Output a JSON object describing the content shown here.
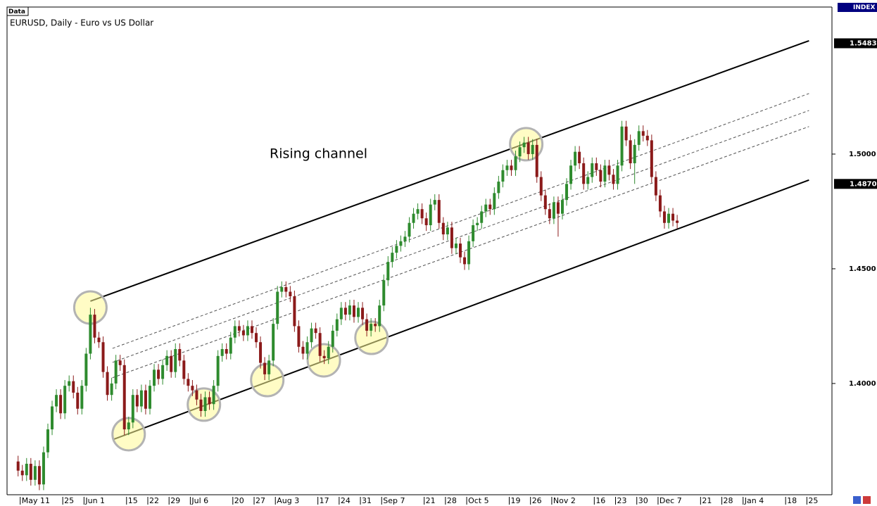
{
  "chart_data": {
    "type": "candlestick",
    "corner_label": "Data",
    "title": "EURUSD, Daily - Euro vs US Dollar",
    "index_tab": "INDEX",
    "annotation": "Rising channel",
    "up_color": "#2e8b2e",
    "down_color": "#8b1a1a",
    "xlim": [
      -3.6,
      190.4
    ],
    "ylim": [
      1.3515,
      1.5641
    ],
    "yticks": [
      {
        "value": 1.4,
        "label": "1.4000"
      },
      {
        "value": 1.45,
        "label": "1.4500"
      },
      {
        "value": 1.5,
        "label": "1.5000"
      }
    ],
    "price_labels": [
      {
        "value": 1.5483,
        "label": "1.5483"
      },
      {
        "value": 1.487,
        "label": "1.4870"
      }
    ],
    "xticks": [
      {
        "value": 0,
        "label": "May 11"
      },
      {
        "value": 10,
        "label": "25"
      },
      {
        "value": 15,
        "label": "Jun 1"
      },
      {
        "value": 25,
        "label": "15"
      },
      {
        "value": 30,
        "label": "22"
      },
      {
        "value": 35,
        "label": "29"
      },
      {
        "value": 40,
        "label": "Jul 6"
      },
      {
        "value": 50,
        "label": "20"
      },
      {
        "value": 55,
        "label": "27"
      },
      {
        "value": 60,
        "label": "Aug 3"
      },
      {
        "value": 70,
        "label": "17"
      },
      {
        "value": 75,
        "label": "24"
      },
      {
        "value": 80,
        "label": "31"
      },
      {
        "value": 85,
        "label": "Sep 7"
      },
      {
        "value": 95,
        "label": "21"
      },
      {
        "value": 100,
        "label": "28"
      },
      {
        "value": 105,
        "label": "Oct 5"
      },
      {
        "value": 115,
        "label": "19"
      },
      {
        "value": 120,
        "label": "26"
      },
      {
        "value": 125,
        "label": "Nov 2"
      },
      {
        "value": 135,
        "label": "16"
      },
      {
        "value": 140,
        "label": "23"
      },
      {
        "value": 145,
        "label": "30"
      },
      {
        "value": 150,
        "label": "Dec 7"
      },
      {
        "value": 160,
        "label": "21"
      },
      {
        "value": 165,
        "label": "28"
      },
      {
        "value": 170,
        "label": "Jan 4"
      },
      {
        "value": 180,
        "label": "18"
      },
      {
        "value": 185,
        "label": "25"
      }
    ],
    "trendlines": [
      {
        "x": [
          16,
          185
        ],
        "y": [
          1.4359,
          1.5494
        ],
        "dashed": false
      },
      {
        "x": [
          21.2,
          185
        ],
        "y": [
          1.3755,
          1.4887
        ],
        "dashed": false
      },
      {
        "x": [
          21.2,
          185
        ],
        "y": [
          1.4153,
          1.5264
        ],
        "dashed": true
      },
      {
        "x": [
          21.2,
          185
        ],
        "y": [
          1.4092,
          1.519
        ],
        "dashed": true
      },
      {
        "x": [
          21.2,
          185
        ],
        "y": [
          1.4025,
          1.512
        ],
        "dashed": true
      }
    ],
    "highlights": [
      {
        "x": 16,
        "y": 1.4331
      },
      {
        "x": 25,
        "y": 1.3779
      },
      {
        "x": 42.7,
        "y": 1.3908
      },
      {
        "x": 57.6,
        "y": 1.4015
      },
      {
        "x": 70.9,
        "y": 1.4101
      },
      {
        "x": 82.1,
        "y": 1.4199
      },
      {
        "x": 118.5,
        "y": 1.5043
      }
    ],
    "x": [
      -1,
      0,
      1,
      2,
      3,
      4,
      5,
      6,
      7,
      8,
      9,
      10,
      11,
      12,
      13,
      14,
      15,
      16,
      17,
      18,
      19,
      20,
      21,
      22,
      23,
      24,
      25,
      26,
      27,
      28,
      29,
      30,
      31,
      32,
      33,
      34,
      35,
      36,
      37,
      38,
      39,
      40,
      41,
      42,
      43,
      44,
      45,
      46,
      47,
      48,
      49,
      50,
      51,
      52,
      53,
      54,
      55,
      56,
      57,
      58,
      59,
      60,
      61,
      62,
      63,
      64,
      65,
      66,
      67,
      68,
      69,
      70,
      71,
      72,
      73,
      74,
      75,
      76,
      77,
      78,
      79,
      80,
      81,
      82,
      83,
      84,
      85,
      86,
      87,
      88,
      89,
      90,
      91,
      92,
      93,
      94,
      95,
      96,
      97,
      98,
      99,
      100,
      101,
      102,
      103,
      104,
      105,
      106,
      107,
      108,
      109,
      110,
      111,
      112,
      113,
      114,
      115,
      116,
      117,
      118,
      119,
      120,
      121,
      122,
      123,
      124,
      125,
      126,
      127,
      128,
      129,
      130,
      131,
      132,
      133,
      134,
      135,
      136,
      137,
      138,
      139,
      140,
      141,
      142,
      143,
      144,
      145,
      146,
      147,
      148,
      149,
      150,
      151,
      152,
      153,
      154
    ],
    "candles": [
      [
        1.366,
        1.3685,
        1.3595,
        1.362
      ],
      [
        1.362,
        1.3645,
        1.3575,
        1.36
      ],
      [
        1.36,
        1.3675,
        1.3575,
        1.365
      ],
      [
        1.365,
        1.3675,
        1.3555,
        1.358
      ],
      [
        1.358,
        1.3665,
        1.3555,
        1.364
      ],
      [
        1.364,
        1.3665,
        1.3535,
        1.356
      ],
      [
        1.356,
        1.3725,
        1.3535,
        1.37
      ],
      [
        1.37,
        1.3825,
        1.3675,
        1.38
      ],
      [
        1.38,
        1.3925,
        1.3775,
        1.39
      ],
      [
        1.39,
        1.3975,
        1.3875,
        1.395
      ],
      [
        1.395,
        1.3975,
        1.3845,
        1.387
      ],
      [
        1.387,
        1.4015,
        1.3845,
        1.399
      ],
      [
        1.399,
        1.4035,
        1.3965,
        1.401
      ],
      [
        1.401,
        1.4035,
        1.3935,
        1.396
      ],
      [
        1.396,
        1.3985,
        1.3865,
        1.389
      ],
      [
        1.389,
        1.4015,
        1.3865,
        1.399
      ],
      [
        1.399,
        1.4155,
        1.3965,
        1.413
      ],
      [
        1.413,
        1.433,
        1.4105,
        1.43
      ],
      [
        1.43,
        1.4325,
        1.4175,
        1.42
      ],
      [
        1.42,
        1.4225,
        1.4155,
        1.418
      ],
      [
        1.418,
        1.4205,
        1.4025,
        1.405
      ],
      [
        1.405,
        1.4075,
        1.3925,
        1.395
      ],
      [
        1.395,
        1.4025,
        1.3925,
        1.4
      ],
      [
        1.4,
        1.4125,
        1.3975,
        1.41
      ],
      [
        1.41,
        1.4125,
        1.4055,
        1.408
      ],
      [
        1.408,
        1.4105,
        1.3775,
        1.38
      ],
      [
        1.38,
        1.3855,
        1.3775,
        1.383
      ],
      [
        1.383,
        1.3975,
        1.3805,
        1.395
      ],
      [
        1.395,
        1.3975,
        1.3875,
        1.39
      ],
      [
        1.39,
        1.3995,
        1.3875,
        1.397
      ],
      [
        1.397,
        1.3995,
        1.3865,
        1.389
      ],
      [
        1.389,
        1.4015,
        1.3865,
        1.399
      ],
      [
        1.399,
        1.4085,
        1.3965,
        1.406
      ],
      [
        1.406,
        1.4085,
        1.3995,
        1.402
      ],
      [
        1.402,
        1.4105,
        1.3995,
        1.408
      ],
      [
        1.408,
        1.4145,
        1.4055,
        1.412
      ],
      [
        1.412,
        1.4145,
        1.4025,
        1.405
      ],
      [
        1.405,
        1.4175,
        1.4025,
        1.415
      ],
      [
        1.415,
        1.4175,
        1.4075,
        1.41
      ],
      [
        1.41,
        1.4125,
        1.3995,
        1.402
      ],
      [
        1.402,
        1.4045,
        1.3965,
        1.399
      ],
      [
        1.399,
        1.4015,
        1.3945,
        1.397
      ],
      [
        1.397,
        1.3995,
        1.3905,
        1.393
      ],
      [
        1.393,
        1.3955,
        1.3855,
        1.388
      ],
      [
        1.388,
        1.3965,
        1.3855,
        1.394
      ],
      [
        1.394,
        1.3965,
        1.3885,
        1.391
      ],
      [
        1.391,
        1.4015,
        1.3885,
        1.399
      ],
      [
        1.399,
        1.4145,
        1.3965,
        1.412
      ],
      [
        1.412,
        1.4175,
        1.4095,
        1.415
      ],
      [
        1.415,
        1.4175,
        1.4105,
        1.413
      ],
      [
        1.413,
        1.4225,
        1.4105,
        1.42
      ],
      [
        1.42,
        1.4275,
        1.4175,
        1.425
      ],
      [
        1.425,
        1.4275,
        1.4205,
        1.423
      ],
      [
        1.423,
        1.4255,
        1.4185,
        1.421
      ],
      [
        1.421,
        1.4275,
        1.4185,
        1.425
      ],
      [
        1.425,
        1.4275,
        1.4195,
        1.422
      ],
      [
        1.422,
        1.4245,
        1.4155,
        1.418
      ],
      [
        1.418,
        1.4205,
        1.4065,
        1.409
      ],
      [
        1.409,
        1.4115,
        1.4015,
        1.404
      ],
      [
        1.404,
        1.4125,
        1.4015,
        1.41
      ],
      [
        1.41,
        1.4285,
        1.4075,
        1.426
      ],
      [
        1.426,
        1.4425,
        1.4235,
        1.44
      ],
      [
        1.44,
        1.4445,
        1.4375,
        1.442
      ],
      [
        1.442,
        1.4445,
        1.4375,
        1.44
      ],
      [
        1.44,
        1.4425,
        1.4355,
        1.438
      ],
      [
        1.438,
        1.4405,
        1.4225,
        1.425
      ],
      [
        1.425,
        1.4275,
        1.4135,
        1.416
      ],
      [
        1.416,
        1.4185,
        1.4105,
        1.413
      ],
      [
        1.413,
        1.4205,
        1.4105,
        1.418
      ],
      [
        1.418,
        1.4265,
        1.4155,
        1.424
      ],
      [
        1.424,
        1.4265,
        1.4195,
        1.422
      ],
      [
        1.422,
        1.4245,
        1.4095,
        1.412
      ],
      [
        1.412,
        1.4145,
        1.4085,
        1.411
      ],
      [
        1.411,
        1.4185,
        1.4085,
        1.416
      ],
      [
        1.416,
        1.4255,
        1.4135,
        1.423
      ],
      [
        1.423,
        1.4305,
        1.4205,
        1.428
      ],
      [
        1.428,
        1.4355,
        1.4255,
        1.433
      ],
      [
        1.433,
        1.4355,
        1.4275,
        1.43
      ],
      [
        1.43,
        1.4365,
        1.4275,
        1.434
      ],
      [
        1.434,
        1.4365,
        1.4265,
        1.429
      ],
      [
        1.429,
        1.4355,
        1.4265,
        1.433
      ],
      [
        1.433,
        1.4355,
        1.4255,
        1.428
      ],
      [
        1.428,
        1.4305,
        1.4205,
        1.423
      ],
      [
        1.423,
        1.4285,
        1.4205,
        1.426
      ],
      [
        1.426,
        1.4285,
        1.4225,
        1.425
      ],
      [
        1.425,
        1.4365,
        1.4225,
        1.434
      ],
      [
        1.434,
        1.4475,
        1.4315,
        1.445
      ],
      [
        1.445,
        1.4555,
        1.4425,
        1.453
      ],
      [
        1.453,
        1.4595,
        1.4505,
        1.457
      ],
      [
        1.457,
        1.4625,
        1.4545,
        1.46
      ],
      [
        1.46,
        1.4645,
        1.4575,
        1.462
      ],
      [
        1.462,
        1.4665,
        1.4595,
        1.464
      ],
      [
        1.464,
        1.4725,
        1.4615,
        1.47
      ],
      [
        1.47,
        1.4765,
        1.4675,
        1.474
      ],
      [
        1.474,
        1.4785,
        1.4715,
        1.476
      ],
      [
        1.476,
        1.4785,
        1.4695,
        1.472
      ],
      [
        1.472,
        1.4745,
        1.4665,
        1.469
      ],
      [
        1.469,
        1.4805,
        1.4665,
        1.478
      ],
      [
        1.478,
        1.4825,
        1.4755,
        1.48
      ],
      [
        1.48,
        1.4825,
        1.4675,
        1.47
      ],
      [
        1.47,
        1.4725,
        1.4625,
        1.465
      ],
      [
        1.465,
        1.4705,
        1.4625,
        1.468
      ],
      [
        1.468,
        1.4705,
        1.4565,
        1.459
      ],
      [
        1.459,
        1.4635,
        1.4565,
        1.461
      ],
      [
        1.461,
        1.4635,
        1.4525,
        1.455
      ],
      [
        1.455,
        1.4575,
        1.4495,
        1.452
      ],
      [
        1.452,
        1.4645,
        1.4495,
        1.462
      ],
      [
        1.462,
        1.4715,
        1.4595,
        1.469
      ],
      [
        1.469,
        1.4725,
        1.4665,
        1.47
      ],
      [
        1.47,
        1.4775,
        1.4675,
        1.475
      ],
      [
        1.475,
        1.4805,
        1.4725,
        1.478
      ],
      [
        1.478,
        1.4805,
        1.4735,
        1.476
      ],
      [
        1.476,
        1.4855,
        1.4735,
        1.483
      ],
      [
        1.483,
        1.4905,
        1.4805,
        1.488
      ],
      [
        1.488,
        1.4955,
        1.4855,
        1.493
      ],
      [
        1.493,
        1.4975,
        1.4905,
        1.495
      ],
      [
        1.495,
        1.4975,
        1.4905,
        1.493
      ],
      [
        1.493,
        1.5015,
        1.4905,
        1.499
      ],
      [
        1.499,
        1.5055,
        1.4965,
        1.503
      ],
      [
        1.503,
        1.5075,
        1.5005,
        1.505
      ],
      [
        1.505,
        1.5075,
        1.4975,
        1.5
      ],
      [
        1.5,
        1.5065,
        1.4975,
        1.504
      ],
      [
        1.504,
        1.5065,
        1.4875,
        1.49
      ],
      [
        1.49,
        1.4925,
        1.4795,
        1.482
      ],
      [
        1.482,
        1.4845,
        1.4735,
        1.476
      ],
      [
        1.476,
        1.4785,
        1.4695,
        1.472
      ],
      [
        1.472,
        1.4815,
        1.4695,
        1.479
      ],
      [
        1.479,
        1.4815,
        1.464,
        1.474
      ],
      [
        1.474,
        1.4825,
        1.4715,
        1.48
      ],
      [
        1.48,
        1.4895,
        1.4775,
        1.487
      ],
      [
        1.487,
        1.4975,
        1.4845,
        1.495
      ],
      [
        1.495,
        1.5035,
        1.4925,
        1.501
      ],
      [
        1.501,
        1.5035,
        1.4935,
        1.496
      ],
      [
        1.496,
        1.4985,
        1.4845,
        1.487
      ],
      [
        1.487,
        1.4925,
        1.4845,
        1.49
      ],
      [
        1.49,
        1.4985,
        1.4875,
        1.496
      ],
      [
        1.496,
        1.4985,
        1.4905,
        1.493
      ],
      [
        1.493,
        1.4955,
        1.4855,
        1.488
      ],
      [
        1.488,
        1.4975,
        1.4855,
        1.495
      ],
      [
        1.495,
        1.4975,
        1.4885,
        1.491
      ],
      [
        1.491,
        1.4935,
        1.4845,
        1.487
      ],
      [
        1.487,
        1.4975,
        1.4845,
        1.495
      ],
      [
        1.495,
        1.5145,
        1.4925,
        1.512
      ],
      [
        1.512,
        1.5145,
        1.5035,
        1.506
      ],
      [
        1.506,
        1.5085,
        1.4935,
        1.496
      ],
      [
        1.496,
        1.5065,
        1.487,
        1.504
      ],
      [
        1.504,
        1.5125,
        1.5015,
        1.51
      ],
      [
        1.51,
        1.5125,
        1.5055,
        1.508
      ],
      [
        1.508,
        1.5105,
        1.5035,
        1.506
      ],
      [
        1.506,
        1.5085,
        1.4875,
        1.49
      ],
      [
        1.49,
        1.4925,
        1.4795,
        1.482
      ],
      [
        1.482,
        1.4845,
        1.4725,
        1.475
      ],
      [
        1.475,
        1.4775,
        1.4675,
        1.47
      ],
      [
        1.47,
        1.4765,
        1.4675,
        1.474
      ],
      [
        1.474,
        1.4765,
        1.4685,
        1.471
      ],
      [
        1.471,
        1.4735,
        1.4675,
        1.47
      ]
    ]
  }
}
